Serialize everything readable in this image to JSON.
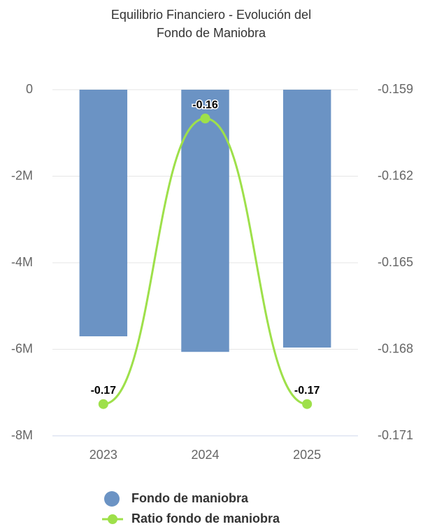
{
  "chart_data": {
    "type": "bar_line",
    "title": "Equilibrio Financiero - Evolución del Fondo de Maniobra",
    "categories": [
      "2023",
      "2024",
      "2025"
    ],
    "series": [
      {
        "name": "Fondo de maniobra",
        "type": "bar",
        "color": "#6b93c4",
        "values": [
          -5700000,
          -6060000,
          -5960000
        ]
      },
      {
        "name": "Ratio fondo de maniobra",
        "type": "line",
        "axis": "y2",
        "color": "#9ee04a",
        "values": [
          -0.1699,
          -0.16,
          -0.1699
        ],
        "value_labels": [
          "-0.17",
          "-0.16",
          "-0.17"
        ]
      }
    ],
    "ylim": [
      -8000000,
      0
    ],
    "yticks": [
      0,
      {
        "value": -2000000,
        "label": "-2M"
      },
      {
        "value": -4000000,
        "label": "-4M"
      },
      {
        "value": -6000000,
        "label": "-6M"
      },
      {
        "value": -8000000,
        "label": "-8M"
      }
    ],
    "y2lim": [
      -0.171,
      -0.159
    ],
    "y2ticks": [
      -0.159,
      -0.162,
      -0.165,
      -0.168,
      -0.171
    ],
    "grid": true,
    "legend": "bottom"
  }
}
